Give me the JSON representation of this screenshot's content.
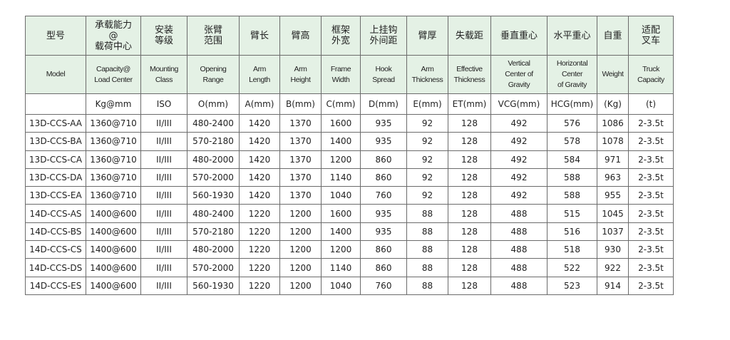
{
  "headers_zh": [
    "型号",
    "承载能力\n@\n载荷中心",
    "安装\n等级",
    "张臂\n范围",
    "臂长",
    "臂高",
    "框架\n外宽",
    "上挂钩\n外间距",
    "臂厚",
    "失载距",
    "垂直重心",
    "水平重心",
    "自重",
    "适配\n叉车"
  ],
  "headers_en": [
    "Model",
    "Capacity@\nLoad Center",
    "Mounting\nClass",
    "Opening\nRange",
    "Arm\nLength",
    "Arm\nHeight",
    "Frame\nWidth",
    "Hook\nSpread",
    "Arm\nThickness",
    "Effective\nThickness",
    "Vertical\nCenter of\nGravity",
    "Horizontal\nCenter\nof Gravity",
    "Weight",
    "Truck\nCapacity"
  ],
  "units": [
    "",
    "Kg@mm",
    "ISO",
    "O(mm)",
    "A(mm)",
    "B(mm)",
    "C(mm)",
    "D(mm)",
    "E(mm)",
    "ET(mm)",
    "VCG(mm)",
    "HCG(mm)",
    "(Kg)",
    "(t)"
  ],
  "rows": [
    [
      "13D-CCS-AA",
      "1360@710",
      "II/III",
      "480-2400",
      "1420",
      "1370",
      "1600",
      "935",
      "92",
      "128",
      "492",
      "576",
      "1086",
      "2-3.5t"
    ],
    [
      "13D-CCS-BA",
      "1360@710",
      "II/III",
      "570-2180",
      "1420",
      "1370",
      "1400",
      "935",
      "92",
      "128",
      "492",
      "578",
      "1078",
      "2-3.5t"
    ],
    [
      "13D-CCS-CA",
      "1360@710",
      "II/III",
      "480-2000",
      "1420",
      "1370",
      "1200",
      "860",
      "92",
      "128",
      "492",
      "584",
      "971",
      "2-3.5t"
    ],
    [
      "13D-CCS-DA",
      "1360@710",
      "II/III",
      "570-2000",
      "1420",
      "1370",
      "1140",
      "860",
      "92",
      "128",
      "492",
      "588",
      "963",
      "2-3.5t"
    ],
    [
      "13D-CCS-EA",
      "1360@710",
      "II/III",
      "560-1930",
      "1420",
      "1370",
      "1040",
      "760",
      "92",
      "128",
      "492",
      "588",
      "955",
      "2-3.5t"
    ],
    [
      "14D-CCS-AS",
      "1400@600",
      "II/III",
      "480-2400",
      "1220",
      "1200",
      "1600",
      "935",
      "88",
      "128",
      "488",
      "515",
      "1045",
      "2-3.5t"
    ],
    [
      "14D-CCS-BS",
      "1400@600",
      "II/III",
      "570-2180",
      "1220",
      "1200",
      "1400",
      "935",
      "88",
      "128",
      "488",
      "516",
      "1037",
      "2-3.5t"
    ],
    [
      "14D-CCS-CS",
      "1400@600",
      "II/III",
      "480-2000",
      "1220",
      "1200",
      "1200",
      "860",
      "88",
      "128",
      "488",
      "518",
      "930",
      "2-3.5t"
    ],
    [
      "14D-CCS-DS",
      "1400@600",
      "II/III",
      "570-2000",
      "1220",
      "1200",
      "1140",
      "860",
      "88",
      "128",
      "488",
      "522",
      "922",
      "2-3.5t"
    ],
    [
      "14D-CCS-ES",
      "1400@600",
      "II/III",
      "560-1930",
      "1220",
      "1200",
      "1040",
      "760",
      "88",
      "128",
      "488",
      "523",
      "914",
      "2-3.5t"
    ]
  ],
  "colors": {
    "header_bg": "#e4f1e5",
    "border": "#6b6b6b"
  }
}
